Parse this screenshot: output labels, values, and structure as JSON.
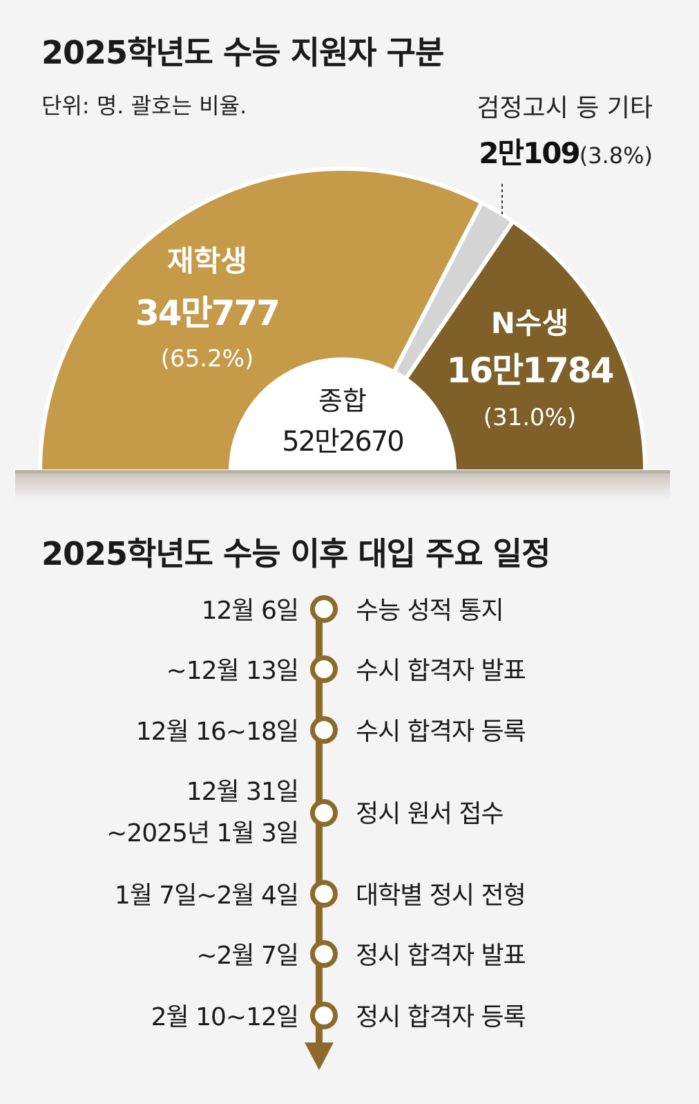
{
  "header": {
    "title": "2025학년도 수능 지원자 구분",
    "unit_note": "단위: 명. 괄호는 비율."
  },
  "chart_data": {
    "type": "pie",
    "shape": "semicircle donut",
    "title": "2025학년도 수능 지원자 구분",
    "subtitle": "단위: 명. 괄호는 비율.",
    "center_label": "종합",
    "center_value": "52만2670",
    "total": 522670,
    "slices": [
      {
        "name": "재학생",
        "value": 340777,
        "value_label": "34만777",
        "percent": 65.2,
        "percent_label": "(65.2%)",
        "color": "#c59a48"
      },
      {
        "name": "검정고시 등 기타",
        "value": 20109,
        "value_label": "2만109",
        "percent": 3.8,
        "percent_label": "(3.8%)",
        "color": "#d4d4d4"
      },
      {
        "name": "N수생",
        "value": 161784,
        "value_label": "16만1784",
        "percent": 31.0,
        "percent_label": "(31.0%)",
        "color": "#7e6028"
      }
    ]
  },
  "schedule": {
    "title": "2025학년도 수능 이후 대입 주요 일정",
    "color": "#8c6a2c",
    "items": [
      {
        "date": "12월 6일",
        "event": "수능 성적 통지"
      },
      {
        "date": "~12월 13일",
        "event": "수시 합격자 발표"
      },
      {
        "date": "12월 16~18일",
        "event": "수시 합격자 등록"
      },
      {
        "date": "12월 31일",
        "date2": "~2025년 1월 3일",
        "event": "정시 원서 접수"
      },
      {
        "date": "1월 7일~2월 4일",
        "event": "대학별 정시 전형"
      },
      {
        "date": "~2월 7일",
        "event": "정시 합격자 발표"
      },
      {
        "date": "2월 10~12일",
        "event": "정시 합격자 등록"
      }
    ]
  }
}
